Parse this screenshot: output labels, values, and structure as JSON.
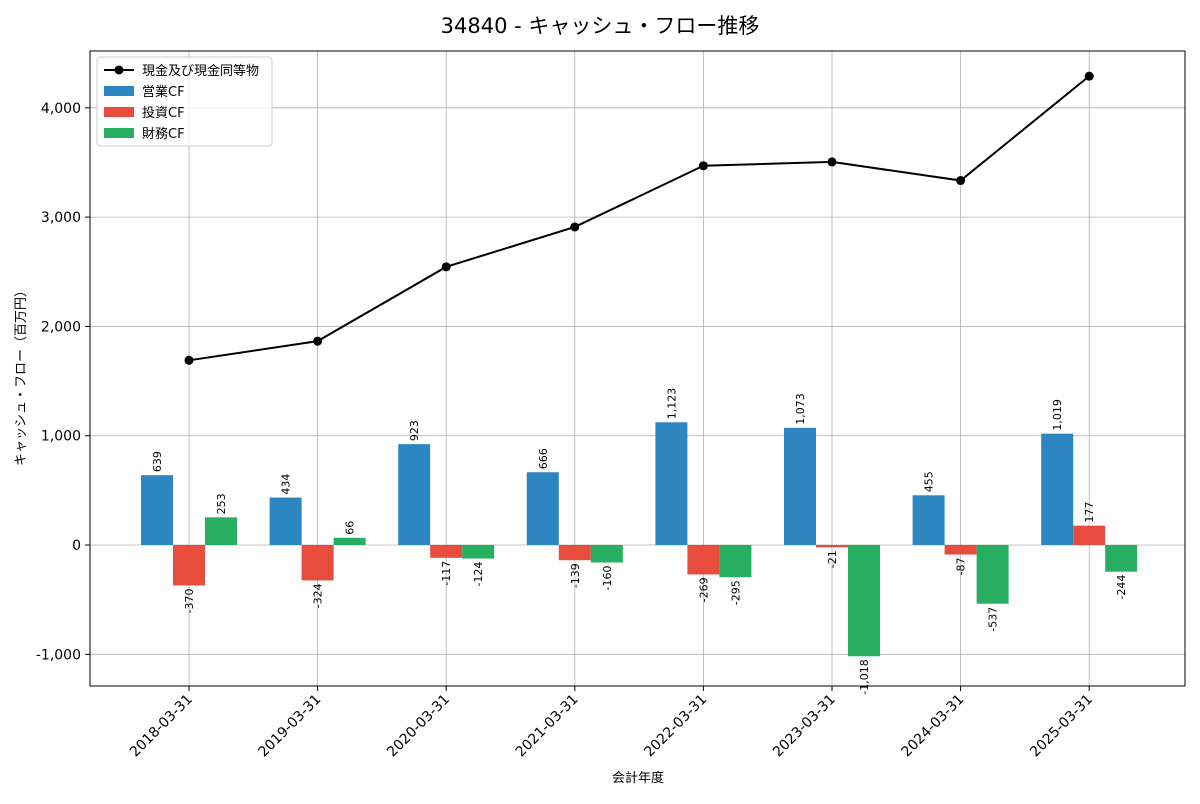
{
  "chart_data": {
    "type": "bar",
    "title": "34840 - キャッシュ・フロー推移",
    "xlabel": "会計年度",
    "ylabel": "キャッシュ・フロー（百万円）",
    "categories": [
      "2018-03-31",
      "2019-03-31",
      "2020-03-31",
      "2021-03-31",
      "2022-03-31",
      "2023-03-31",
      "2024-03-31",
      "2025-03-31"
    ],
    "series": [
      {
        "name": "営業CF",
        "type": "bar",
        "color": "#2e86c1",
        "values": [
          639,
          434,
          923,
          666,
          1123,
          1073,
          455,
          1019
        ],
        "labels": [
          "639",
          "434",
          "923",
          "666",
          "1,123",
          "1,073",
          "455",
          "1,019"
        ]
      },
      {
        "name": "投資CF",
        "type": "bar",
        "color": "#e74c3c",
        "values": [
          -370,
          -324,
          -117,
          -139,
          -269,
          -21,
          -87,
          177
        ],
        "labels": [
          "-370",
          "-324",
          "-117",
          "-139",
          "-269",
          "-21",
          "-87",
          "177"
        ]
      },
      {
        "name": "財務CF",
        "type": "bar",
        "color": "#27ae60",
        "values": [
          253,
          66,
          -124,
          -160,
          -295,
          -1018,
          -537,
          -244
        ],
        "labels": [
          "253",
          "66",
          "-124",
          "-160",
          "-295",
          "-1,018",
          "-537",
          "-244"
        ]
      }
    ],
    "line_series": {
      "name": "現金及び現金同等物",
      "type": "line",
      "color": "#000000",
      "values": [
        1690,
        1865,
        2545,
        2910,
        3470,
        3505,
        3335,
        4290
      ]
    },
    "ylim": [
      -1290,
      4520
    ],
    "yticks": [
      -1000,
      0,
      1000,
      2000,
      3000,
      4000
    ],
    "ytick_labels": [
      "-1,000",
      "0",
      "1,000",
      "2,000",
      "3,000",
      "4,000"
    ],
    "grid": true,
    "legend_position": "top-left"
  }
}
